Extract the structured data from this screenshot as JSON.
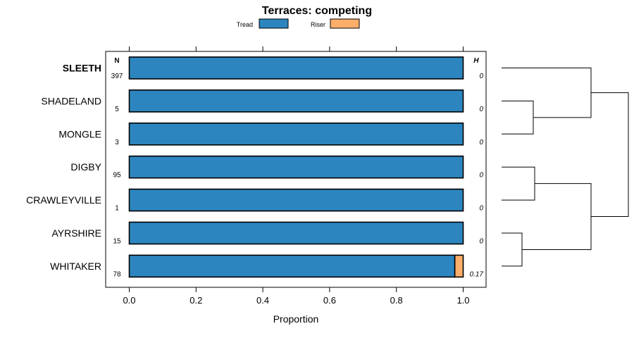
{
  "chart_data": {
    "type": "bar",
    "orientation": "horizontal",
    "stacked": true,
    "title": "Terraces: competing",
    "xlabel": "Proportion",
    "ylabel": "",
    "xlim": [
      -0.07,
      1.07
    ],
    "x_ticks": [
      "0.0",
      "0.2",
      "0.4",
      "0.6",
      "0.8",
      "1.0"
    ],
    "x_tick_values": [
      0,
      0.2,
      0.4,
      0.6,
      0.8,
      1.0
    ],
    "legend_position": "top",
    "n_header": "N",
    "h_header": "H",
    "categories": [
      "SLEETH",
      "SHADELAND",
      "MONGLE",
      "DIGBY",
      "CRAWLEYVILLE",
      "AYRSHIRE",
      "WHITAKER"
    ],
    "highlighted_category": "SLEETH",
    "n_values": [
      "397",
      "5",
      "3",
      "95",
      "1",
      "15",
      "78"
    ],
    "h_values": [
      "0",
      "0",
      "0",
      "0",
      "0",
      "0",
      "0.17"
    ],
    "series": [
      {
        "name": "Tread",
        "color": "#2c85bf",
        "values": [
          1,
          1,
          1,
          1,
          1,
          1,
          0.975
        ]
      },
      {
        "name": "Riser",
        "color": "#fdae6b",
        "values": [
          0,
          0,
          0,
          0,
          0,
          0,
          0.025
        ]
      }
    ],
    "dendrogram": {
      "merges": [
        [
          5,
          6
        ],
        [
          1,
          2
        ],
        [
          3,
          4
        ],
        [
          9,
          7
        ],
        [
          0,
          8
        ],
        [
          11,
          10
        ]
      ]
    }
  }
}
